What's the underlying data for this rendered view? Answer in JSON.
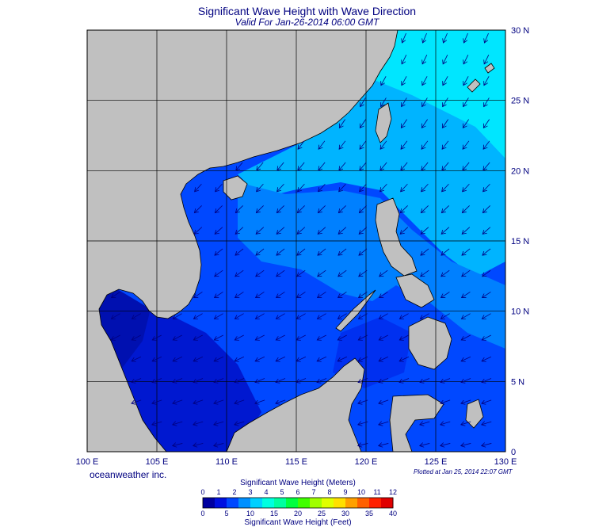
{
  "header": {
    "title": "Significant Wave Height with Wave Direction",
    "subtitle": "Valid For Jan-26-2014 06:00 GMT"
  },
  "map": {
    "lon_ticks": [
      "100 E",
      "105 E",
      "110 E",
      "115 E",
      "120 E",
      "125 E",
      "130 E"
    ],
    "lat_ticks": [
      "0",
      "5 N",
      "10 N",
      "15 N",
      "20 N",
      "25 N",
      "30 N"
    ],
    "lon_range": [
      100,
      130
    ],
    "lat_range": [
      0,
      30
    ],
    "land_color": "#c0c0c0",
    "coast_color": "#000000",
    "wind_from": "northeast"
  },
  "footer": {
    "credit": "oceanweather inc.",
    "plotted": "Plotted at Jan 25, 2014 22:07 GMT"
  },
  "colorbar": {
    "title_top": "Significant Wave Height (Meters)",
    "title_bottom": "Significant Wave Height (Feet)",
    "meters_ticks": [
      "0",
      "1",
      "2",
      "3",
      "4",
      "5",
      "6",
      "7",
      "8",
      "9",
      "10",
      "11",
      "12"
    ],
    "feet_ticks": [
      "0",
      "5",
      "10",
      "15",
      "20",
      "25",
      "30",
      "35",
      "40"
    ],
    "colors": [
      "#0000a0",
      "#0010e0",
      "#0048ff",
      "#0090ff",
      "#00d0ff",
      "#00ffe0",
      "#00ffa0",
      "#00ff40",
      "#40ff00",
      "#a0ff00",
      "#e0ff00",
      "#ffe000",
      "#ffa000",
      "#ff6000",
      "#ff2000",
      "#e00000"
    ]
  }
}
